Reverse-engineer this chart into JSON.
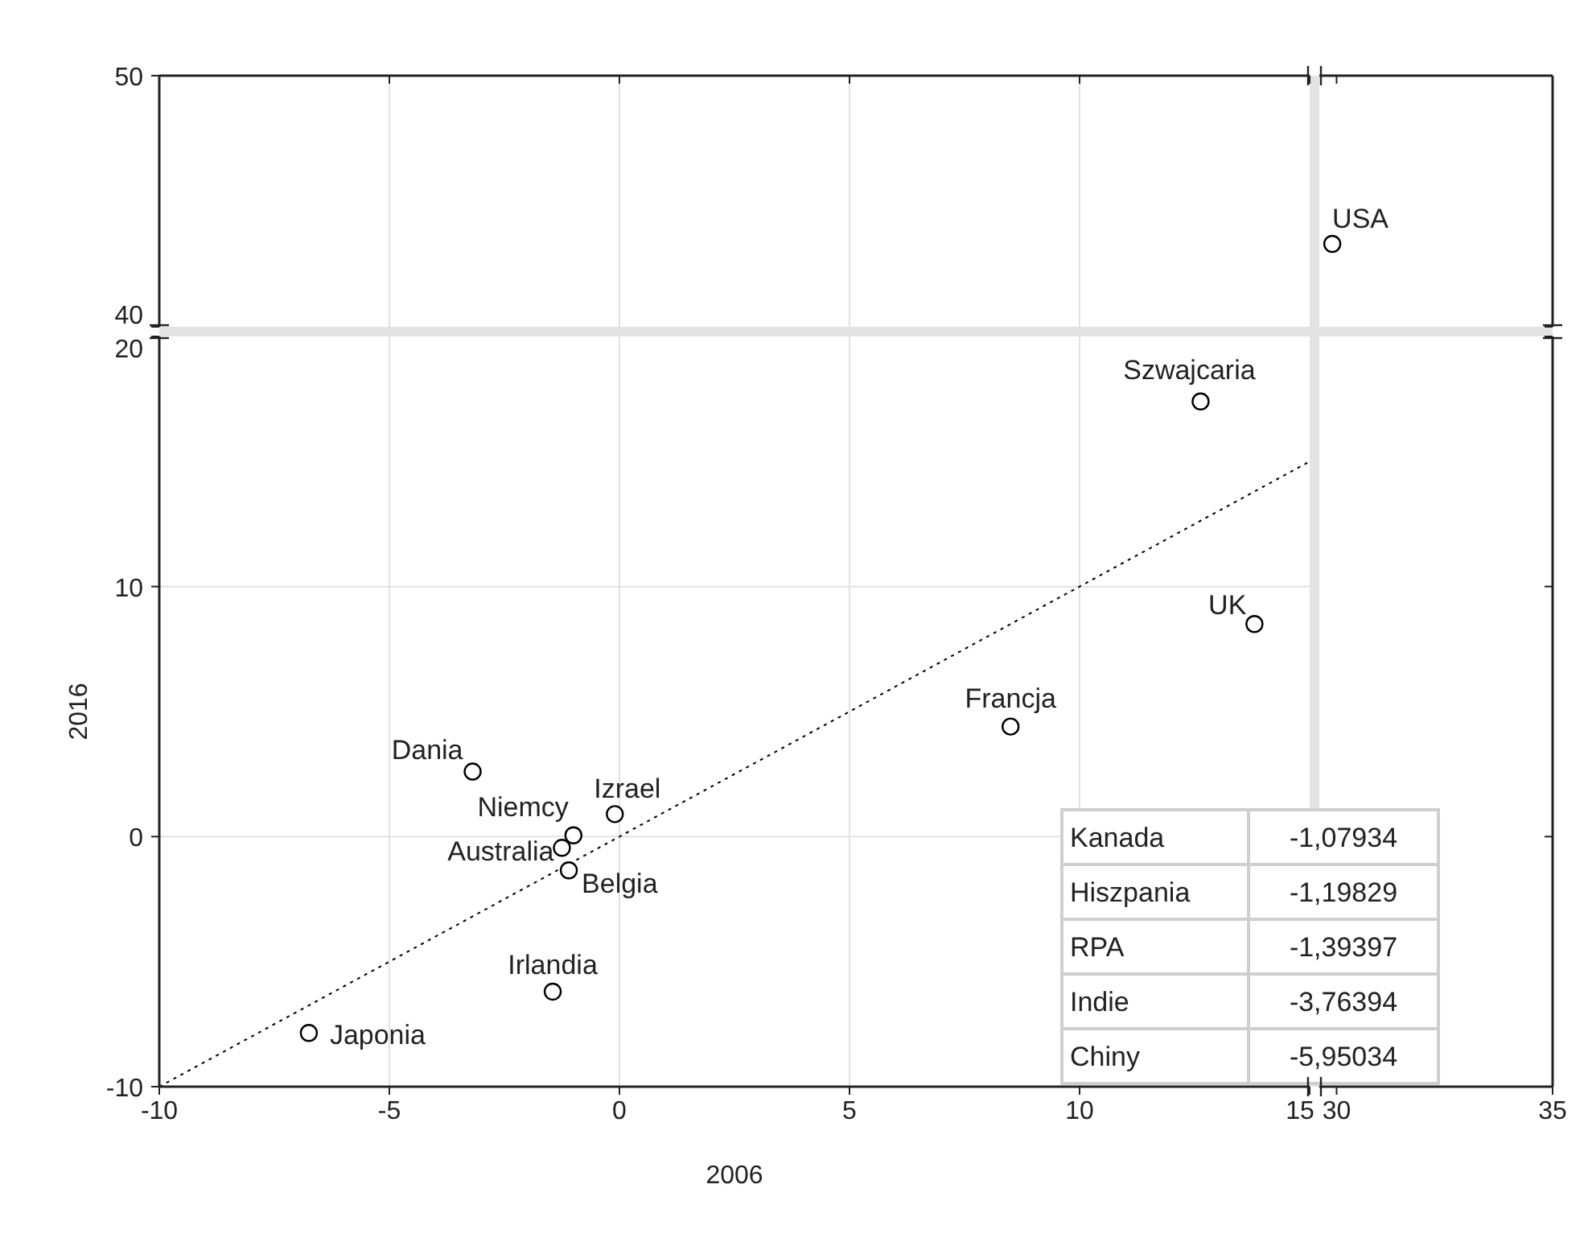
{
  "chart_data": [
    {
      "type": "scatter",
      "xlim": [
        -10,
        15
      ],
      "ylim": [
        40,
        50
      ],
      "yticks": [
        40,
        50
      ],
      "tick_labels": "y",
      "grid": true,
      "xticks": [
        -10,
        -5,
        0,
        5,
        10,
        15
      ]
    },
    {
      "type": "scatter",
      "xlim": [
        29.6,
        35
      ],
      "ylim": [
        40,
        50
      ],
      "xticks": [
        30,
        35
      ],
      "yticks": [
        40,
        50
      ],
      "tick_labels": false,
      "series": [
        {
          "color": "#000000",
          "marker": "circle",
          "x": [
            29.9
          ],
          "values": [
            43.3
          ]
        }
      ],
      "annotations": [
        {
          "text": "USA",
          "x": 29.9,
          "y": 43.3
        }
      ]
    },
    {
      "type": "scatter",
      "xlim": [
        -10,
        15
      ],
      "ylim": [
        -10,
        20
      ],
      "xticks": [
        -10,
        -5,
        0,
        5,
        10,
        15
      ],
      "yticks": [
        -10,
        0,
        10,
        20
      ],
      "xlabel": "2006",
      "ylabel": "2016",
      "grid": true,
      "series": [
        {
          "color": "#000000",
          "marker": "circle",
          "x": [
            12.63,
            13.8,
            8.5,
            -3.19,
            -0.1,
            -1.0,
            -1.25,
            -1.1,
            -1.45,
            -6.75
          ],
          "values": [
            17.4,
            8.5,
            4.4,
            2.6,
            0.9,
            0.05,
            -0.45,
            -1.35,
            -6.2,
            -7.85
          ]
        },
        {
          "type": "line",
          "color": "#000000",
          "line_style": "dotted",
          "x": [
            -10,
            15
          ],
          "values": [
            -10,
            15
          ]
        }
      ],
      "annotations": [
        {
          "text": "Szwajcaria",
          "x": 12.63,
          "y": 17.4
        },
        {
          "text": "UK",
          "x": 13.8,
          "y": 8.5
        },
        {
          "text": "Francja",
          "x": 8.5,
          "y": 4.4
        },
        {
          "text": "Dania",
          "x": -3.19,
          "y": 2.6
        },
        {
          "text": "Izrael",
          "x": -0.1,
          "y": 0.9
        },
        {
          "text": "Niemcy",
          "x": -1.0,
          "y": 0.05
        },
        {
          "text": "Australia",
          "x": -1.25,
          "y": -0.45
        },
        {
          "text": "Belgia",
          "x": -1.1,
          "y": -1.35
        },
        {
          "text": "Irlandia",
          "x": -1.45,
          "y": -6.2
        },
        {
          "text": "Japonia",
          "x": -6.75,
          "y": -7.85
        },
        "Kanada",
        "-1,07934",
        "Hiszpania",
        "-1,19829",
        "RPA",
        "-1,39397",
        "Indie",
        "-3,76394",
        "Chiny",
        "-5,95034"
      ]
    },
    {
      "type": "scatter",
      "xlim": [
        29.6,
        35
      ],
      "ylim": [
        -10,
        20
      ],
      "xticks": [
        30,
        35
      ],
      "yticks": [
        -10,
        0,
        10,
        20
      ],
      "tick_labels": "x"
    }
  ]
}
